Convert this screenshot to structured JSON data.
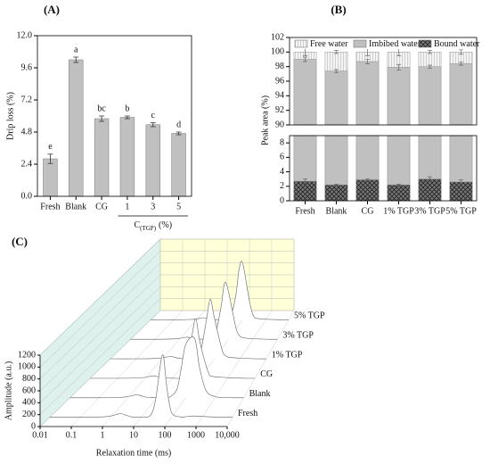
{
  "chart_data": [
    {
      "type": "bar",
      "title": "(A)",
      "ylabel": "Drip loss (%)",
      "categories": [
        "Fresh",
        "Blank",
        "CG",
        "1",
        "3",
        "5"
      ],
      "values": [
        2.8,
        10.2,
        5.8,
        5.9,
        5.35,
        4.7
      ],
      "errors": [
        0.35,
        0.2,
        0.2,
        0.1,
        0.15,
        0.1
      ],
      "letters": [
        "e",
        "a",
        "bc",
        "b",
        "c",
        "d"
      ],
      "group_label": {
        "main": "C",
        "sub": "(TGP)",
        "unit": "(%)"
      },
      "color": "#c0c0c0",
      "ylim": [
        0,
        12
      ],
      "yticks": [
        {
          "value": 0,
          "label": "0.0"
        },
        2.4,
        4.8,
        7.2,
        9.6,
        {
          "value": 12,
          "label": "12.0"
        }
      ]
    },
    {
      "type": "stacked_bar",
      "title": "(B)",
      "ylabel": "Peak area (%)",
      "categories": [
        "Fresh",
        "Blank",
        "CG",
        "1% TGP",
        "3% TGP",
        "5% TGP"
      ],
      "series": [
        {
          "name": "Bound water",
          "color": "#555555",
          "values": [
            2.7,
            2.2,
            2.9,
            2.2,
            3.0,
            2.6
          ],
          "errors": [
            0.3,
            0.1,
            0.1,
            0.1,
            0.3,
            0.3
          ]
        },
        {
          "name": "Imbibed water",
          "color": "#c0c0c0",
          "values": [
            96.3,
            95.2,
            95.8,
            95.7,
            95.0,
            95.8
          ],
          "errors": [
            0.3,
            0.2,
            0.3,
            0.4,
            0.2,
            0.2
          ]
        },
        {
          "name": "Free water",
          "color": "#eeeeee",
          "values": [
            1.0,
            2.6,
            1.3,
            2.1,
            2.0,
            1.6
          ],
          "errors": [
            0.5,
            0.2,
            0.5,
            0.5,
            0.2,
            0.3
          ]
        }
      ],
      "ylim_lower": [
        0,
        9
      ],
      "yticks_lower": [
        0,
        2,
        4,
        6,
        8
      ],
      "ylim_upper": [
        90,
        102
      ],
      "yticks_upper": [
        90,
        92,
        94,
        96,
        98,
        100,
        102
      ]
    },
    {
      "type": "waterfall",
      "title": "(C)",
      "xlabel": "Relaxation time (ms)",
      "ylabel": "Amplitude (a.u.)",
      "log_x": true,
      "x": [
        0.01,
        0.1,
        0.5,
        1,
        2,
        3,
        5,
        10,
        20,
        30,
        50,
        70,
        100,
        200,
        300,
        500,
        1000,
        2000,
        5000,
        10000
      ],
      "series": [
        {
          "name": "Fresh",
          "values": [
            0,
            0,
            5,
            20,
            60,
            40,
            5,
            2,
            30,
            300,
            1050,
            500,
            80,
            5,
            10,
            20,
            15,
            5,
            0,
            0
          ]
        },
        {
          "name": "Blank",
          "values": [
            0,
            0,
            5,
            20,
            50,
            30,
            5,
            2,
            5,
            20,
            150,
            500,
            900,
            1000,
            500,
            120,
            20,
            5,
            0,
            0
          ]
        },
        {
          "name": "CG",
          "values": [
            0,
            0,
            5,
            15,
            40,
            25,
            5,
            2,
            10,
            150,
            700,
            1000,
            600,
            100,
            30,
            20,
            10,
            5,
            0,
            0
          ]
        },
        {
          "name": "1% TGP",
          "values": [
            0,
            0,
            5,
            15,
            40,
            25,
            5,
            2,
            10,
            120,
            650,
            1000,
            700,
            150,
            40,
            20,
            10,
            5,
            0,
            0
          ]
        },
        {
          "name": "3% TGP",
          "values": [
            0,
            0,
            5,
            15,
            35,
            20,
            5,
            2,
            10,
            100,
            550,
            950,
            800,
            200,
            50,
            20,
            10,
            5,
            0,
            0
          ]
        },
        {
          "name": "5% TGP",
          "values": [
            0,
            0,
            5,
            15,
            35,
            20,
            5,
            2,
            5,
            60,
            400,
            850,
            950,
            300,
            60,
            20,
            10,
            5,
            0,
            0
          ]
        }
      ],
      "xlim": [
        0.01,
        10000
      ],
      "xticks": [
        0.01,
        0.1,
        1,
        10,
        100,
        1000,
        {
          "value": 10000,
          "label": "10,000"
        }
      ],
      "ylim": [
        0,
        1200
      ],
      "yticks": [
        0,
        200,
        400,
        600,
        800,
        1000,
        1200
      ]
    }
  ]
}
